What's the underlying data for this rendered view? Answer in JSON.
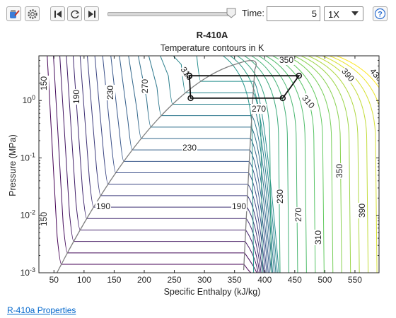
{
  "toolbar": {
    "time_label": "Time:",
    "time_value": "5",
    "speed": "1X",
    "help_label": "?",
    "slider_value": 1.0
  },
  "chart_data": {
    "type": "contour",
    "title": "R-410A",
    "subtitle": "Temperature contours in K",
    "xlabel": "Specific Enthalpy (kJ/kg)",
    "ylabel": "Pressure (MPa)",
    "xlim": [
      25,
      590
    ],
    "ylim": [
      0.001,
      6
    ],
    "yscale": "log",
    "xticks": [
      "50",
      "100",
      "150",
      "200",
      "250",
      "300",
      "350",
      "400",
      "450",
      "500",
      "550"
    ],
    "yticks": [
      {
        "base": "10",
        "exp": "-3"
      },
      {
        "base": "10",
        "exp": "-2"
      },
      {
        "base": "10",
        "exp": "-1"
      },
      {
        "base": "10",
        "exp": "0"
      }
    ],
    "contour_labels": [
      "150",
      "190",
      "230",
      "270",
      "310",
      "350",
      "390",
      "430",
      "230",
      "190",
      "190",
      "270",
      "310",
      "350",
      "390",
      "150",
      "230",
      "270",
      "310",
      "350",
      "390"
    ],
    "cycle": [
      {
        "h": 275,
        "p": 2.7
      },
      {
        "h": 457,
        "p": 2.7
      },
      {
        "h": 430,
        "p": 1.1
      },
      {
        "h": 277,
        "p": 1.1
      }
    ]
  },
  "footer": {
    "link": "R-410a Properties"
  }
}
